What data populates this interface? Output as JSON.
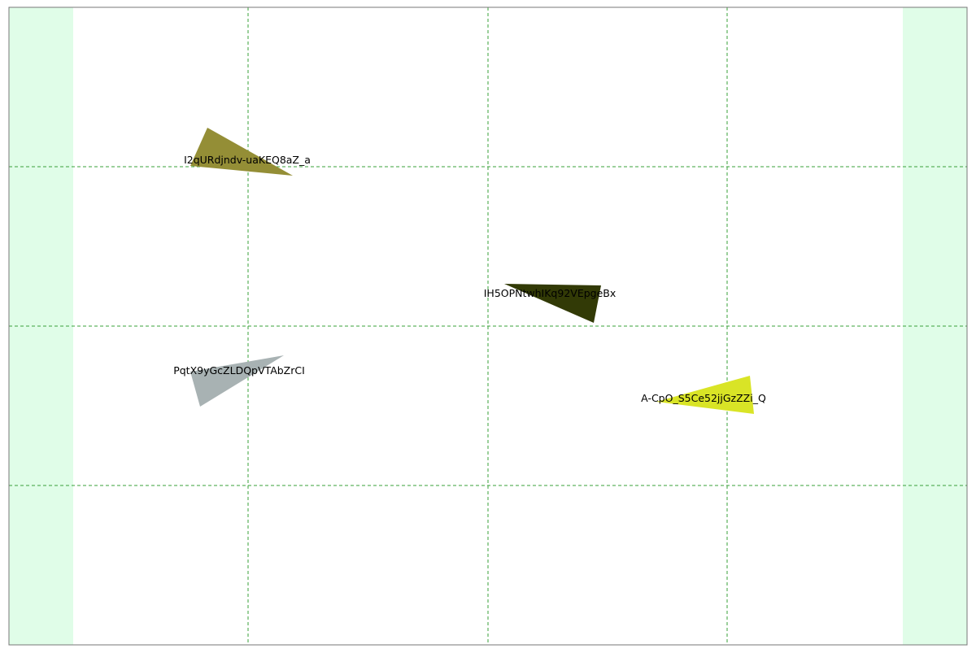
{
  "colors": {
    "frame_border": "#777777",
    "side_band": "#e0fde8",
    "grid_line": "#3aa03a",
    "background": "#ffffff"
  },
  "shapes": [
    {
      "id": "shape-1",
      "label": "I2qURdjndv-uaKEQ8aZ_a",
      "color": "#948e36"
    },
    {
      "id": "shape-2",
      "label": "IH5OPNtwhIKq92VEpgeBx",
      "color": "#323a06"
    },
    {
      "id": "shape-3",
      "label": "PqtX9yGcZLDQpVTAbZrCI",
      "color": "#a8b2b3"
    },
    {
      "id": "shape-4",
      "label": "A-CpO_S5Ce52jjGzZZi_Q",
      "color": "#d9e426"
    }
  ]
}
